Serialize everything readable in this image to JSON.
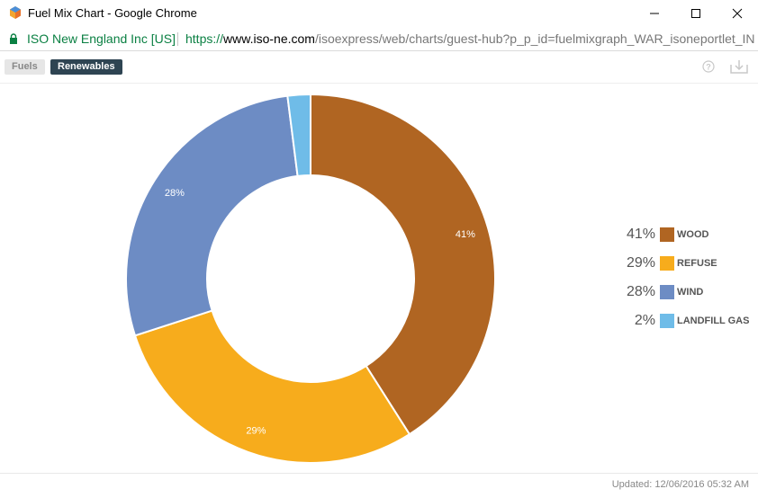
{
  "window": {
    "title": "Fuel Mix Chart - Google Chrome"
  },
  "address": {
    "site_identity": "ISO New England Inc [US]",
    "url_scheme": "https://",
    "url_host": "www.iso-ne.com",
    "url_path": "/isoexpress/web/charts/guest-hub?p_p_id=fuelmixgraph_WAR_isoneportlet_IN"
  },
  "tabs": [
    {
      "label": "Fuels",
      "active": false
    },
    {
      "label": "Renewables",
      "active": true
    }
  ],
  "icons": {
    "help": "help-circle-icon",
    "download": "download-icon"
  },
  "chart_data": {
    "type": "pie",
    "donut": true,
    "legend_position": "right",
    "categories": [
      "WOOD",
      "REFUSE",
      "WIND",
      "LANDFILL GAS"
    ],
    "values": [
      41,
      29,
      28,
      2
    ],
    "value_labels": [
      "41%",
      "29%",
      "28%",
      "2%"
    ],
    "colors": [
      "#b06522",
      "#f7ac1c",
      "#6d8cc4",
      "#6fbce8"
    ],
    "start": "top",
    "direction": "clockwise"
  },
  "footer": {
    "updated": "Updated: 12/06/2016 05:32 AM"
  }
}
